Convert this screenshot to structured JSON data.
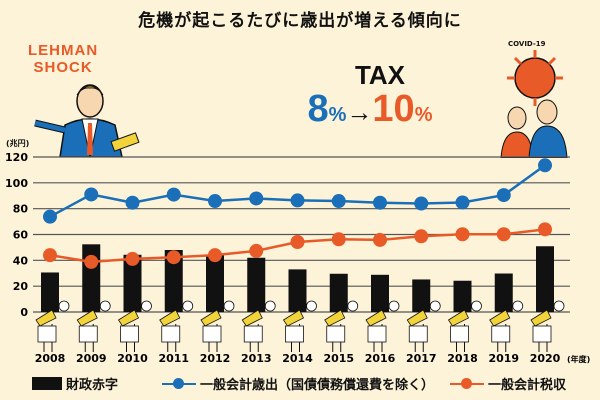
{
  "title": "危機が起こるたびに歳出が増える傾向に",
  "illustrations": {
    "lehman": [
      "LEHMAN",
      "SHOCK"
    ],
    "tax_label": "TAX",
    "tax_from": "8",
    "tax_to": "10",
    "percent": "%",
    "arrow": "→",
    "covid": "COVID-19"
  },
  "colors": {
    "blue": "#1a6fb8",
    "orange": "#e85a28",
    "bar": "#111111",
    "background": "#fdf3d8",
    "figure": "#f2d43a"
  },
  "chart_data": {
    "type": "bar+line",
    "title": "危機が起こるたびに歳出が増える傾向に",
    "ylabel": "(兆円)",
    "xlabel_suffix": "(年度)",
    "ylim": [
      0,
      120
    ],
    "yticks": [
      0,
      20,
      40,
      60,
      80,
      100,
      120
    ],
    "grid": true,
    "legend_position": "bottom",
    "categories": [
      "2008",
      "2009",
      "2010",
      "2011",
      "2012",
      "2013",
      "2014",
      "2015",
      "2016",
      "2017",
      "2018",
      "2019",
      "2020"
    ],
    "series": [
      {
        "name": "財政赤字",
        "kind": "bar",
        "color": "#111111",
        "values": [
          30.6,
          52.4,
          44.3,
          48.0,
          44.0,
          42.0,
          33.0,
          29.6,
          28.8,
          25.2,
          24.2,
          29.8,
          50.9
        ]
      },
      {
        "name": "一般会計歳出（国債債務償還費を除く）",
        "kind": "line",
        "color": "#1a6fb8",
        "values": [
          73.8,
          91.0,
          84.6,
          90.9,
          85.9,
          87.9,
          86.4,
          85.9,
          84.6,
          84.0,
          84.8,
          90.5,
          113.6
        ]
      },
      {
        "name": "一般会計税収",
        "kind": "line",
        "color": "#e85a28",
        "values": [
          44.0,
          38.8,
          41.1,
          42.4,
          44.0,
          47.3,
          54.2,
          56.3,
          55.8,
          58.6,
          60.2,
          60.2,
          64.0
        ]
      }
    ]
  }
}
